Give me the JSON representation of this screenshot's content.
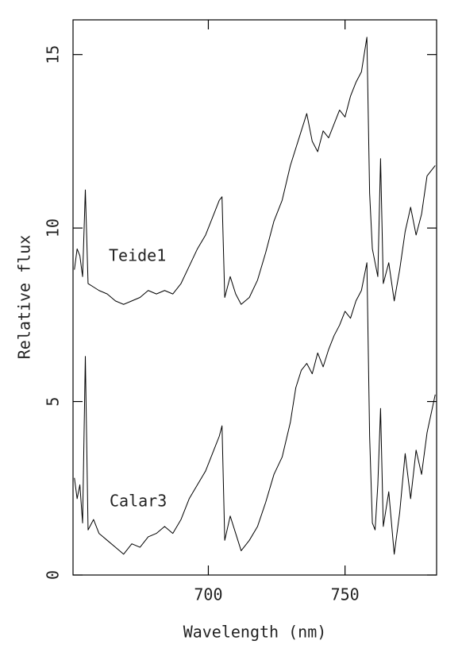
{
  "chart_data": {
    "type": "line",
    "xlabel": "Wavelength (nm)",
    "ylabel": "Relative flux",
    "annotations": [
      "Teide1",
      "Calar3"
    ],
    "x": [
      651,
      652,
      653,
      654,
      655,
      656,
      658,
      660,
      663,
      666,
      669,
      672,
      675,
      678,
      681,
      684,
      687,
      690,
      693,
      696,
      699,
      702,
      704,
      705,
      706,
      708,
      710,
      712,
      715,
      718,
      721,
      724,
      727,
      730,
      732,
      734,
      736,
      738,
      740,
      742,
      744,
      746,
      748,
      750,
      752,
      754,
      756,
      758,
      759,
      760,
      761,
      762,
      763,
      764,
      766,
      768,
      770,
      772,
      774,
      776,
      778,
      780,
      783
    ],
    "series": [
      {
        "name": "Teide1",
        "color": "#000000",
        "values": [
          8.8,
          9.4,
          9.2,
          8.6,
          11.1,
          8.4,
          8.3,
          8.2,
          8.1,
          7.9,
          7.8,
          7.9,
          8.0,
          8.2,
          8.1,
          8.2,
          8.1,
          8.4,
          8.9,
          9.4,
          9.8,
          10.4,
          10.8,
          10.9,
          8.0,
          8.6,
          8.1,
          7.8,
          8.0,
          8.5,
          9.3,
          10.2,
          10.8,
          11.8,
          12.3,
          12.8,
          13.3,
          12.5,
          12.2,
          12.8,
          12.6,
          13.0,
          13.4,
          13.2,
          13.8,
          14.2,
          14.5,
          15.5,
          11.0,
          9.4,
          9.0,
          8.6,
          12.0,
          8.4,
          9.0,
          7.9,
          8.8,
          9.9,
          10.6,
          9.8,
          10.4,
          11.5,
          11.8
        ]
      },
      {
        "name": "Calar3",
        "color": "#000000",
        "values": [
          2.8,
          2.2,
          2.6,
          1.5,
          6.3,
          1.3,
          1.6,
          1.2,
          1.0,
          0.8,
          0.6,
          0.9,
          0.8,
          1.1,
          1.2,
          1.4,
          1.2,
          1.6,
          2.2,
          2.6,
          3.0,
          3.6,
          4.0,
          4.3,
          1.0,
          1.7,
          1.2,
          0.7,
          1.0,
          1.4,
          2.1,
          2.9,
          3.4,
          4.4,
          5.4,
          5.9,
          6.1,
          5.8,
          6.4,
          6.0,
          6.5,
          6.9,
          7.2,
          7.6,
          7.4,
          7.9,
          8.2,
          9.0,
          4.0,
          1.5,
          1.3,
          2.6,
          4.8,
          1.4,
          2.4,
          0.6,
          1.8,
          3.5,
          2.2,
          3.6,
          2.9,
          4.1,
          5.2
        ]
      }
    ],
    "xlim": [
      650.5,
      783.5
    ],
    "ylim": [
      0,
      16
    ],
    "xticks": [
      700,
      750
    ],
    "yticks": [
      0,
      5,
      10,
      15
    ]
  }
}
